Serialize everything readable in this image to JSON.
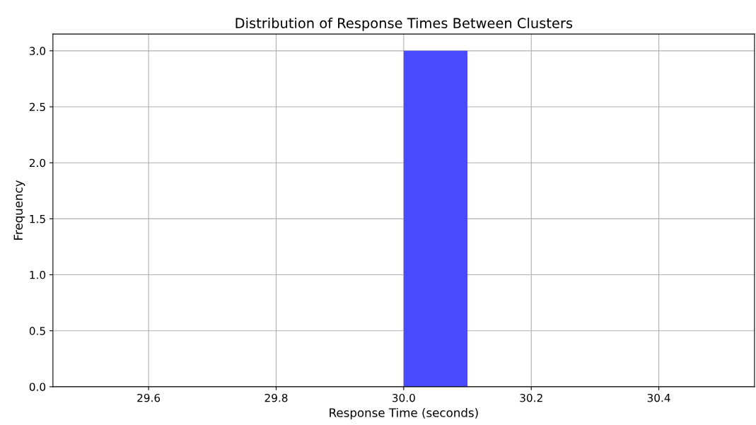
{
  "chart_data": {
    "type": "histogram",
    "title": "Distribution of Response Times Between Clusters",
    "xlabel": "Response Time (seconds)",
    "ylabel": "Frequency",
    "bins": [
      29.5,
      29.6,
      29.7,
      29.8,
      29.9,
      30.0,
      30.1,
      30.2,
      30.3,
      30.4,
      30.5
    ],
    "values": [
      0,
      0,
      0,
      0,
      0,
      3,
      0,
      0,
      0,
      0
    ],
    "color": "#4a4aff",
    "xlim": [
      29.45,
      30.55
    ],
    "xticks": [
      29.6,
      29.8,
      {
        "value": 30,
        "label": "30.0"
      },
      30.2,
      30.4
    ],
    "ylim": [
      0,
      3.15
    ],
    "yticks": [
      {
        "value": 0,
        "label": "0.0"
      },
      0.5,
      {
        "value": 1,
        "label": "1.0"
      },
      1.5,
      {
        "value": 2,
        "label": "2.0"
      },
      2.5,
      {
        "value": 3,
        "label": "3.0"
      }
    ],
    "grid": true
  }
}
